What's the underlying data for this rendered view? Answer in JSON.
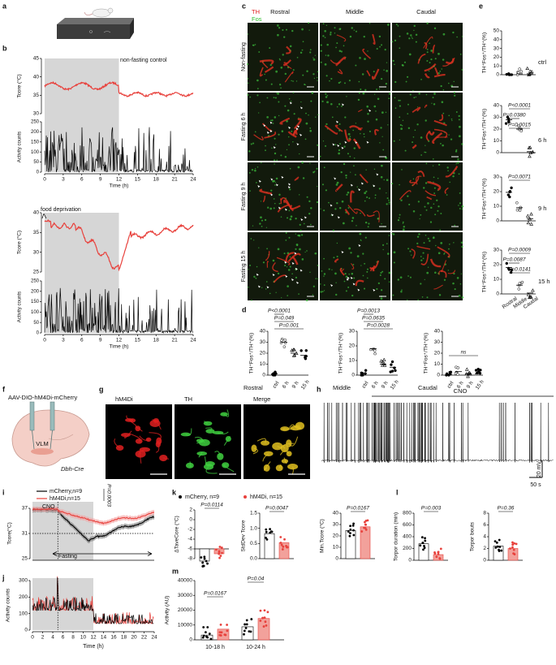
{
  "panel_labels": [
    "a",
    "b",
    "c",
    "d",
    "e",
    "f",
    "g",
    "h",
    "i",
    "j",
    "k",
    "l",
    "m"
  ],
  "b": {
    "top": {
      "annotation": "non-fasting control",
      "temp_axis_label": "Tcore (°C)",
      "temp_ticks": [
        "30",
        "35",
        "40",
        "45"
      ],
      "activity_axis_label": "Activity counts",
      "activity_ticks": [
        "0",
        "50",
        "100",
        "150",
        "200",
        "250"
      ],
      "time_ticks": [
        "0",
        "3",
        "6",
        "9",
        "12",
        "15",
        "18",
        "21",
        "24"
      ],
      "time_axis_label": "Time (h)"
    },
    "bottom": {
      "annotation": "food deprivation",
      "temp_axis_label": "Tcore (°C)",
      "temp_ticks": [
        "25",
        "30",
        "35",
        "40"
      ],
      "activity_axis_label": "Activity counts",
      "activity_ticks": [
        "0",
        "50",
        "100",
        "150",
        "200",
        "250"
      ],
      "time_ticks": [
        "0",
        "3",
        "6",
        "9",
        "12",
        "15",
        "18",
        "21",
        "24"
      ],
      "time_axis_label": "Time (h)"
    }
  },
  "c": {
    "legend": [
      "TH",
      "Fos"
    ],
    "columns": [
      "Rostral",
      "Middle",
      "Caudal"
    ],
    "rows": [
      "Non-fasting",
      "Fasting 6 h",
      "Fasting 9 h",
      "Fasting 15 h"
    ]
  },
  "d": {
    "categories": [
      "ctrl",
      "6 h",
      "9 h",
      "15 h"
    ],
    "plots": [
      {
        "region": "Rostral",
        "y_axis_label": "TH⁺Fos⁺/TH⁺(%)",
        "ticks": [
          "0",
          "10",
          "20",
          "30",
          "40"
        ],
        "p_values": [
          "P=0.001",
          "P=0.049",
          "P<0.0001"
        ]
      },
      {
        "region": "Middle",
        "y_axis_label": "TH⁺Fos⁺/TH⁺(%)",
        "ticks": [
          "0",
          "10",
          "20",
          "30"
        ],
        "p_values": [
          "P=0.0028",
          "P=0.0635",
          "P=0.0013"
        ]
      },
      {
        "region": "Caudal",
        "y_axis_label": "TH⁺Fos⁺/TH⁺(%)",
        "ticks": [
          "0",
          "10",
          "20",
          "30",
          "40"
        ],
        "p_values": [
          "ns"
        ]
      }
    ]
  },
  "e": {
    "categories": [
      "Rostral",
      "Middle",
      "Caudal"
    ],
    "plots": [
      {
        "condition": "ctrl",
        "y_axis_label": "TH⁺Fos⁺/TH⁺(%)",
        "ticks": [
          "0",
          "10",
          "20",
          "30",
          "40",
          "50"
        ],
        "p_values": []
      },
      {
        "condition": "6 h",
        "y_axis_label": "TH⁺Fos⁺/TH⁺(%)",
        "ticks": [
          "0",
          "10",
          "20",
          "30",
          "40"
        ],
        "p_values": [
          "P<0.0001",
          "P=0.0380",
          "P=0.0015"
        ]
      },
      {
        "condition": "9 h",
        "y_axis_label": "TH⁺Fos⁺/TH⁺(%)",
        "ticks": [
          "0",
          "10",
          "20",
          "30"
        ],
        "p_values": [
          "P=0.0071"
        ]
      },
      {
        "condition": "15 h",
        "y_axis_label": "TH⁺Fos⁺/TH⁺(%)",
        "ticks": [
          "0",
          "10",
          "20",
          "30"
        ],
        "p_values": [
          "P=0.0009",
          "P=0.0087",
          "P=0.0141"
        ]
      }
    ]
  },
  "f": {
    "virus": "AAV-DIO-hM4Di-mCherry",
    "region": "VLM",
    "mouse_line": "Dbh-Cre"
  },
  "g": {
    "channels": [
      "hM4Di",
      "TH",
      "Merge"
    ]
  },
  "h": {
    "drug": "CNO",
    "voltage_scale": "20 mV",
    "time_scale": "50 s"
  },
  "i": {
    "legend": [
      "mCherry,n=9",
      "hM4Di,n=15"
    ],
    "p_value": "P=0.0003",
    "drug": "CNO",
    "y_axis_label": "Tcore(°C)",
    "ticks": [
      "25",
      "31",
      "37"
    ],
    "condition": "Fasting"
  },
  "j": {
    "y_axis_label": "Activity counts",
    "ticks": [
      "0",
      "100",
      "200",
      "300"
    ],
    "time_ticks": [
      "0",
      "2",
      "4",
      "6",
      "8",
      "10",
      "12",
      "14",
      "16",
      "18",
      "20",
      "22",
      "24"
    ],
    "x_axis_label": "Time (h)"
  },
  "k": {
    "legend": [
      "mCherry, n=9",
      "hM4Di, n=15"
    ],
    "plots": [
      {
        "y_axis_label": "ΔTaveCore (°C)",
        "ticks": [
          "-8",
          "-6",
          "-4",
          "-2",
          "0",
          "2"
        ],
        "p_value": "P=0.0114"
      },
      {
        "y_axis_label": "StdDev Tcore",
        "ticks": [
          "0.0",
          "0.5",
          "1.0",
          "1.5"
        ],
        "p_value": "P=0.0047"
      },
      {
        "y_axis_label": "Min.Tcore (°C)",
        "ticks": [
          "0",
          "10",
          "20",
          "30",
          "40"
        ],
        "p_value": "P=0.0167"
      }
    ]
  },
  "l": {
    "plots": [
      {
        "y_axis_label": "Torpor duration (min)",
        "ticks": [
          "0",
          "200",
          "400",
          "600",
          "800"
        ],
        "p_value": "P=0.003"
      },
      {
        "y_axis_label": "Torpor bouts",
        "ticks": [
          "0",
          "2",
          "4",
          "6",
          "8"
        ],
        "p_value": "P=0.36"
      }
    ]
  },
  "m": {
    "y_axis_label": "Activity (AU)",
    "ticks": [
      "0",
      "10000",
      "20000",
      "30000",
      "40000"
    ],
    "categories": [
      "10-18 h",
      "10-24 h"
    ],
    "p_values": [
      "P=0.0167",
      "P=0.04"
    ]
  }
}
